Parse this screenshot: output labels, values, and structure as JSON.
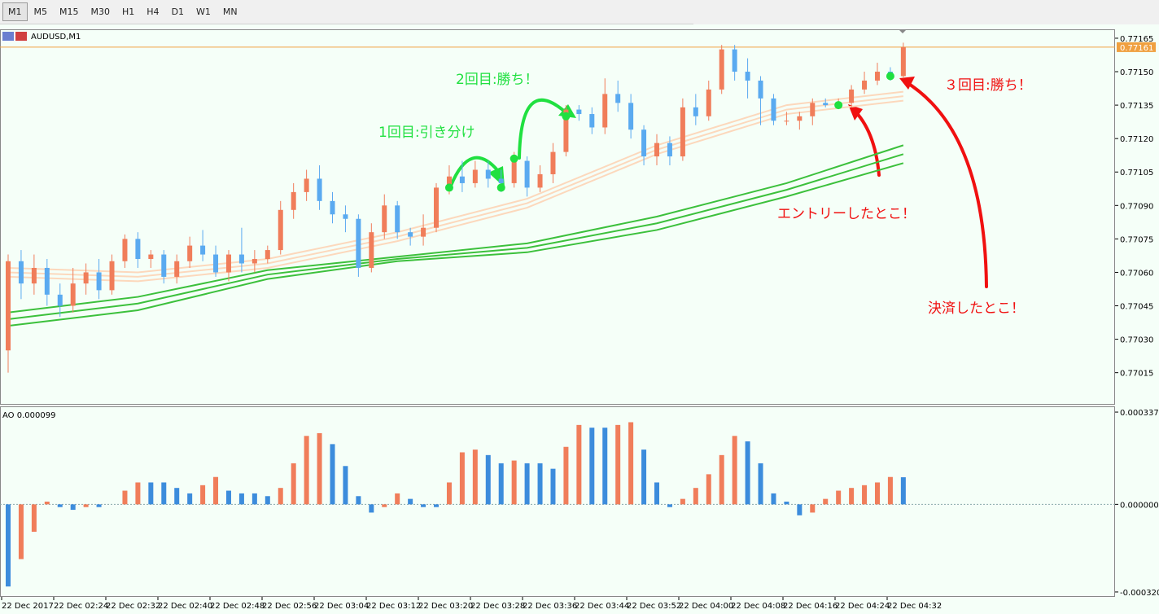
{
  "toolbar": {
    "timeframes": [
      "M1",
      "M5",
      "M15",
      "M30",
      "H1",
      "H4",
      "D1",
      "W1",
      "MN"
    ],
    "selected": 0
  },
  "chart_data": [
    {
      "type": "candlestick",
      "title": "AUDUSD,M1",
      "up_color": "#f07d5a",
      "down_color": "#5aaaf0",
      "bid": 0.77161,
      "bid_color": "#f0a040",
      "ylim": [
        0.77001,
        0.77169
      ],
      "yticks": [
        0.77165,
        {
          "value": 0.7715,
          "label": "0.77150"
        },
        0.77135,
        {
          "value": 0.7712,
          "label": "0.77120"
        },
        0.77105,
        {
          "value": 0.7709,
          "label": "0.77090"
        },
        0.77075,
        {
          "value": 0.7706,
          "label": "0.77060"
        },
        0.77045,
        {
          "value": 0.7703,
          "label": "0.77030"
        },
        0.77015
      ],
      "xlabels": [
        "22 Dec 2017",
        "22 Dec 02:24",
        "22 Dec 02:32",
        "22 Dec 02:40",
        "22 Dec 02:48",
        "22 Dec 02:56",
        "22 Dec 03:04",
        "22 Dec 03:12",
        "22 Dec 03:20",
        "22 Dec 03:28",
        "22 Dec 03:36",
        "22 Dec 03:44",
        "22 Dec 03:52",
        "22 Dec 04:00",
        "22 Dec 04:08",
        "22 Dec 04:16",
        "22 Dec 04:24",
        "22 Dec 04:32"
      ],
      "ohlc": [
        [
          0.77025,
          0.77068,
          0.77015,
          0.77065
        ],
        [
          0.77065,
          0.7707,
          0.77048,
          0.77055
        ],
        [
          0.77055,
          0.77068,
          0.7705,
          0.77062
        ],
        [
          0.77062,
          0.77066,
          0.77045,
          0.7705
        ],
        [
          0.7705,
          0.77055,
          0.7704,
          0.77045
        ],
        [
          0.77045,
          0.77062,
          0.77042,
          0.77055
        ],
        [
          0.77055,
          0.77064,
          0.7705,
          0.7706
        ],
        [
          0.7706,
          0.77066,
          0.77048,
          0.77052
        ],
        [
          0.77052,
          0.77068,
          0.7705,
          0.77065
        ],
        [
          0.77065,
          0.77077,
          0.77062,
          0.77075
        ],
        [
          0.77075,
          0.77078,
          0.77062,
          0.77066
        ],
        [
          0.77066,
          0.7707,
          0.77062,
          0.77068
        ],
        [
          0.77068,
          0.7707,
          0.77055,
          0.77058
        ],
        [
          0.77058,
          0.77068,
          0.77055,
          0.77065
        ],
        [
          0.77065,
          0.77076,
          0.77062,
          0.77072
        ],
        [
          0.77072,
          0.77079,
          0.77065,
          0.77068
        ],
        [
          0.77068,
          0.77072,
          0.77058,
          0.7706
        ],
        [
          0.7706,
          0.7707,
          0.77056,
          0.77068
        ],
        [
          0.77068,
          0.7708,
          0.7706,
          0.77064
        ],
        [
          0.77064,
          0.7707,
          0.7706,
          0.77066
        ],
        [
          0.77066,
          0.77072,
          0.77064,
          0.7707
        ],
        [
          0.7707,
          0.77092,
          0.77068,
          0.77088
        ],
        [
          0.77088,
          0.771,
          0.77084,
          0.77096
        ],
        [
          0.77096,
          0.77106,
          0.77092,
          0.77102
        ],
        [
          0.77102,
          0.77108,
          0.77088,
          0.77092
        ],
        [
          0.77092,
          0.77096,
          0.77082,
          0.77086
        ],
        [
          0.77086,
          0.7709,
          0.77078,
          0.77084
        ],
        [
          0.77084,
          0.77086,
          0.77058,
          0.77062
        ],
        [
          0.77062,
          0.77082,
          0.7706,
          0.77078
        ],
        [
          0.77078,
          0.77095,
          0.77075,
          0.7709
        ],
        [
          0.7709,
          0.77092,
          0.77075,
          0.77078
        ],
        [
          0.77078,
          0.7708,
          0.77072,
          0.77076
        ],
        [
          0.77076,
          0.77086,
          0.77072,
          0.7708
        ],
        [
          0.7708,
          0.771,
          0.77078,
          0.77098
        ],
        [
          0.77098,
          0.77108,
          0.77095,
          0.77103
        ],
        [
          0.77103,
          0.7711,
          0.77096,
          0.771
        ],
        [
          0.771,
          0.7711,
          0.77098,
          0.77106
        ],
        [
          0.77106,
          0.7711,
          0.77098,
          0.77102
        ],
        [
          0.77102,
          0.77106,
          0.77096,
          0.771
        ],
        [
          0.771,
          0.77114,
          0.77098,
          0.7711
        ],
        [
          0.7711,
          0.77112,
          0.77094,
          0.77098
        ],
        [
          0.77098,
          0.77108,
          0.77096,
          0.77104
        ],
        [
          0.77104,
          0.77118,
          0.771,
          0.77114
        ],
        [
          0.77114,
          0.77135,
          0.77112,
          0.77133
        ],
        [
          0.77133,
          0.77135,
          0.77128,
          0.77131
        ],
        [
          0.77131,
          0.77134,
          0.77122,
          0.77125
        ],
        [
          0.77125,
          0.77147,
          0.77122,
          0.7714
        ],
        [
          0.7714,
          0.77146,
          0.77132,
          0.77136
        ],
        [
          0.77136,
          0.7714,
          0.7712,
          0.77124
        ],
        [
          0.77124,
          0.77126,
          0.77108,
          0.77112
        ],
        [
          0.77112,
          0.77122,
          0.77108,
          0.77118
        ],
        [
          0.77118,
          0.77121,
          0.77108,
          0.77112
        ],
        [
          0.77112,
          0.77138,
          0.7711,
          0.77134
        ],
        [
          0.77134,
          0.7714,
          0.77126,
          0.7713
        ],
        [
          0.7713,
          0.77146,
          0.77128,
          0.77142
        ],
        [
          0.77142,
          0.77162,
          0.7714,
          0.7716
        ],
        [
          0.7716,
          0.77162,
          0.77146,
          0.7715
        ],
        [
          0.7715,
          0.77156,
          0.77138,
          0.77146
        ],
        [
          0.77146,
          0.77148,
          0.77126,
          0.77138
        ],
        [
          0.77138,
          0.7714,
          0.77126,
          0.77128
        ],
        [
          0.77128,
          0.77132,
          0.77126,
          0.77128
        ],
        [
          0.77128,
          0.77132,
          0.77124,
          0.7713
        ],
        [
          0.7713,
          0.77138,
          0.77126,
          0.77136
        ],
        [
          0.77136,
          0.77138,
          0.77134,
          0.77135
        ],
        [
          0.77135,
          0.77138,
          0.77134,
          0.77136
        ],
        [
          0.77136,
          0.77144,
          0.77134,
          0.77142
        ],
        [
          0.77142,
          0.7715,
          0.7714,
          0.77146
        ],
        [
          0.77146,
          0.77154,
          0.77144,
          0.7715
        ],
        [
          0.7715,
          0.77152,
          0.77146,
          0.77148
        ],
        [
          0.77148,
          0.77163,
          0.77147,
          0.77161
        ]
      ],
      "ma": {
        "x": [
          0,
          10,
          20,
          30,
          40,
          50,
          60,
          69
        ],
        "series": [
          {
            "color": "#3cc03c",
            "values": [
              0.77042,
              0.77049,
              0.77061,
              0.77067,
              0.77073,
              0.77085,
              0.771,
              0.77117
            ]
          },
          {
            "color": "#3cc03c",
            "values": [
              0.77039,
              0.77046,
              0.77059,
              0.77066,
              0.77071,
              0.77082,
              0.77097,
              0.77113
            ]
          },
          {
            "color": "#3cc03c",
            "values": [
              0.77036,
              0.77043,
              0.77057,
              0.77065,
              0.77069,
              0.77079,
              0.77094,
              0.77109
            ]
          },
          {
            "color": "#fcd8bc",
            "values": [
              0.77062,
              0.7706,
              0.77066,
              0.77078,
              0.77093,
              0.77117,
              0.77135,
              0.77141
            ]
          },
          {
            "color": "#fcd8bc",
            "values": [
              0.7706,
              0.77058,
              0.77064,
              0.77076,
              0.77091,
              0.77115,
              0.77133,
              0.77139
            ]
          },
          {
            "color": "#fcd8bc",
            "values": [
              0.77058,
              0.77056,
              0.77062,
              0.77074,
              0.77089,
              0.77113,
              0.77131,
              0.77137
            ]
          }
        ]
      },
      "markers": {
        "color": "#20e040",
        "x": [
          34,
          38,
          39,
          43,
          64,
          68
        ],
        "y": [
          0.77098,
          0.77098,
          0.77111,
          0.7713,
          0.77135,
          0.77148
        ]
      },
      "annotations": [
        {
          "text": "1回目:引き分け",
          "color": "#20e040"
        },
        {
          "text": "2回目:勝ち！",
          "color": "#20e040"
        },
        {
          "text": "３回目:勝ち！",
          "color": "#f01010"
        },
        {
          "text": "エントリーしたとこ！",
          "color": "#f01010"
        },
        {
          "text": "決済したとこ！",
          "color": "#f01010"
        }
      ]
    },
    {
      "type": "bar",
      "title": "AO 0.000099",
      "up_color": "#f07d5a",
      "down_color": "#3c8cdc",
      "ylim": [
        -0.000338,
        0.000355
      ],
      "yticks": [
        0.000337,
        {
          "value": 0,
          "label": "0.000000"
        },
        {
          "value": -0.00032,
          "label": "-0.000320"
        }
      ],
      "values": [
        -0.0003,
        -0.0002,
        -0.0001,
        1e-05,
        -1e-05,
        -2e-05,
        -1e-05,
        -1e-05,
        0,
        5e-05,
        8e-05,
        8e-05,
        8e-05,
        6e-05,
        4e-05,
        7e-05,
        0.0001,
        5e-05,
        4e-05,
        4e-05,
        3e-05,
        6e-05,
        0.00015,
        0.00025,
        0.00026,
        0.00022,
        0.00014,
        3e-05,
        -3e-05,
        -1e-05,
        4e-05,
        2e-05,
        -1e-05,
        -1e-05,
        8e-05,
        0.00019,
        0.0002,
        0.00018,
        0.00015,
        0.00016,
        0.00015,
        0.00015,
        0.00013,
        0.00021,
        0.00029,
        0.00028,
        0.00028,
        0.00029,
        0.0003,
        0.0002,
        8e-05,
        -1e-05,
        2e-05,
        6e-05,
        0.00011,
        0.00018,
        0.00025,
        0.00023,
        0.00015,
        4e-05,
        1e-05,
        -4e-05,
        -3e-05,
        2e-05,
        5e-05,
        6e-05,
        7e-05,
        8e-05,
        0.0001,
        9.9e-05
      ]
    }
  ]
}
